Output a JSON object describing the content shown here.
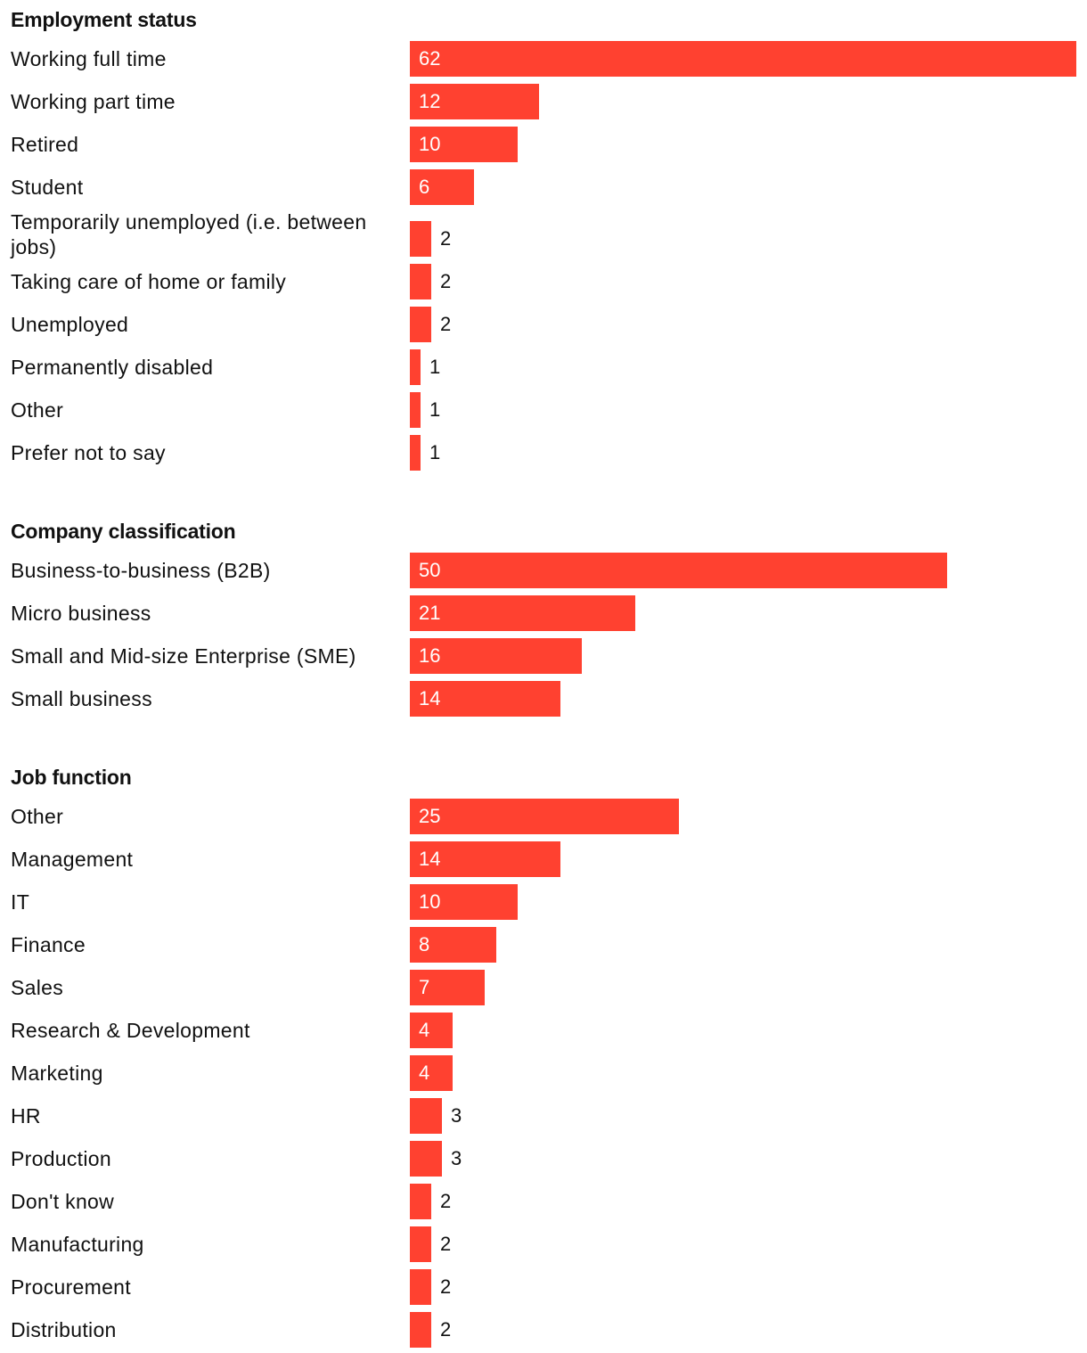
{
  "chart_data": [
    {
      "type": "bar",
      "orientation": "horizontal",
      "title": "Employment status",
      "categories": [
        "Working full time",
        "Working part time",
        "Retired",
        "Student",
        "Temporarily unemployed (i.e. between jobs)",
        "Taking care of home or family",
        "Unemployed",
        "Permanently disabled",
        "Other",
        "Prefer not to say"
      ],
      "values": [
        62,
        12,
        10,
        6,
        2,
        2,
        2,
        1,
        1,
        1
      ],
      "xlim": [
        0,
        62
      ],
      "color": "#ff4130"
    },
    {
      "type": "bar",
      "orientation": "horizontal",
      "title": "Company classification",
      "categories": [
        "Business-to-business (B2B)",
        "Micro business",
        "Small and Mid-size Enterprise (SME)",
        "Small business"
      ],
      "values": [
        50,
        21,
        16,
        14
      ],
      "xlim": [
        0,
        62
      ],
      "color": "#ff4130"
    },
    {
      "type": "bar",
      "orientation": "horizontal",
      "title": "Job function",
      "categories": [
        "Other",
        "Management",
        "IT",
        "Finance",
        "Sales",
        "Research & Development",
        "Marketing",
        "HR",
        "Production",
        "Don't know",
        "Manufacturing",
        "Procurement",
        "Distribution"
      ],
      "values": [
        25,
        14,
        10,
        8,
        7,
        4,
        4,
        3,
        3,
        2,
        2,
        2,
        2
      ],
      "xlim": [
        0,
        62
      ],
      "color": "#ff4130"
    }
  ]
}
